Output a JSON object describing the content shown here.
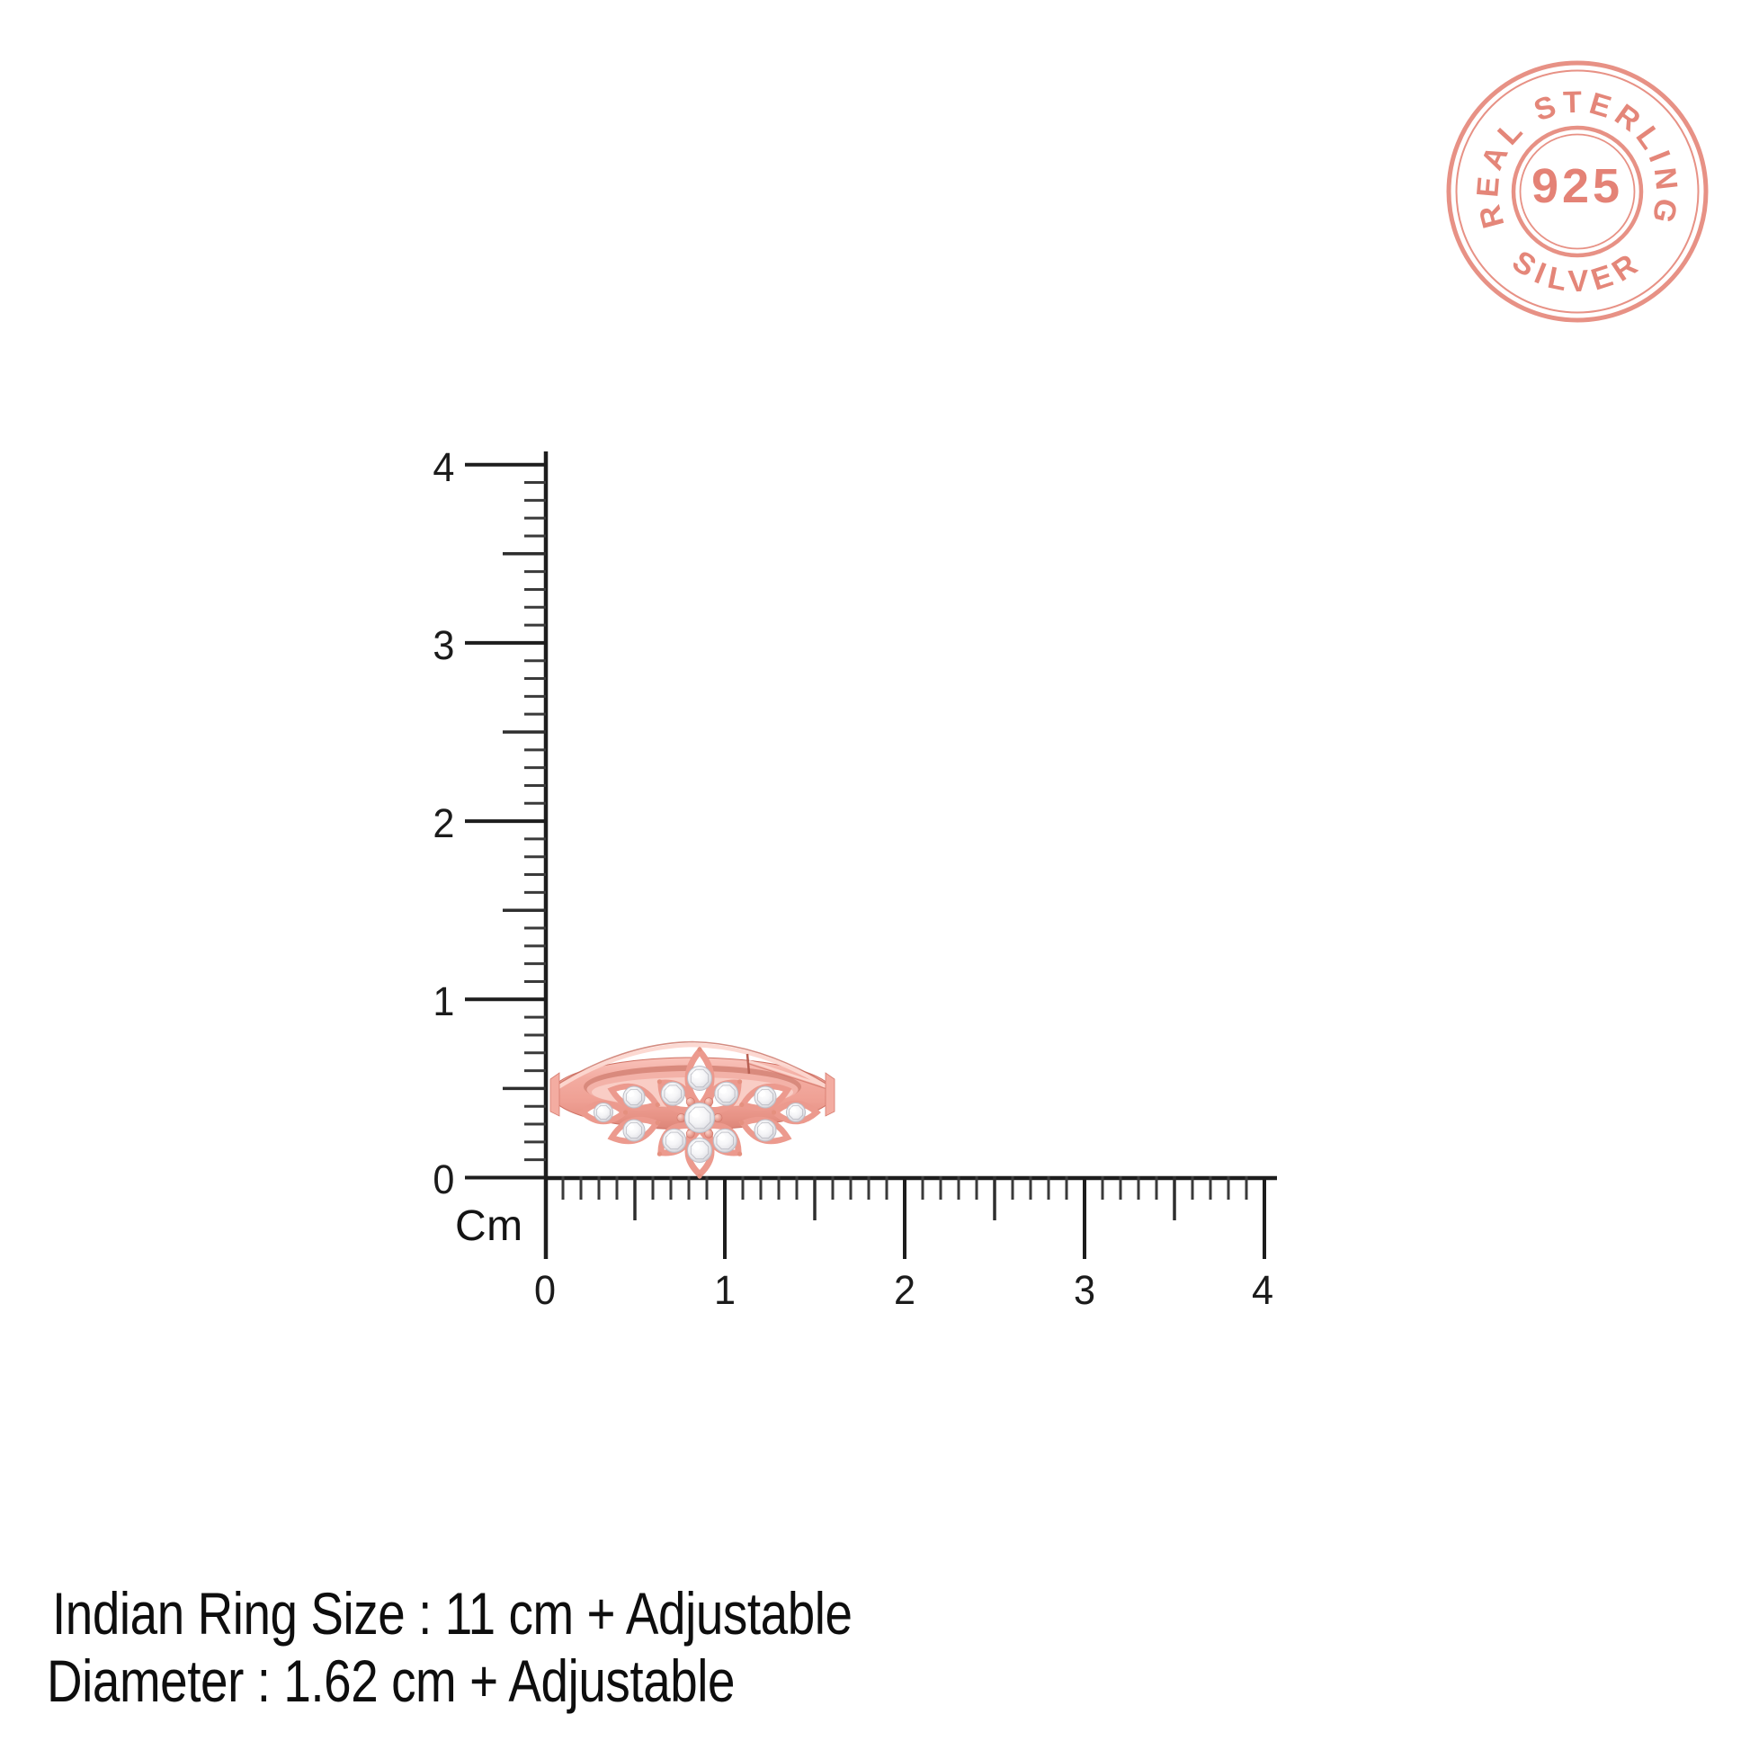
{
  "stamp": {
    "top_text": "REAL STERLING",
    "center_text": "925",
    "bottom_text": "SILVER",
    "color": "#e6897c",
    "color_dark": "#de7e70"
  },
  "rulers": {
    "unit": "Cm",
    "vertical_labels": [
      "4",
      "3",
      "2",
      "1",
      "0"
    ],
    "horizontal_labels": [
      "0",
      "1",
      "2",
      "3",
      "4"
    ]
  },
  "ring": {
    "colors": {
      "rose_gold": "#ec9a8e",
      "rose_gold_dark": "#cf7164",
      "rose_gold_light": "#fcd7d0",
      "stone_white": "#f2f2f5"
    }
  },
  "caption": {
    "line1": "Indian Ring Size : 11 cm + Adjustable",
    "line2": "Diameter : 1.62 cm + Adjustable"
  }
}
